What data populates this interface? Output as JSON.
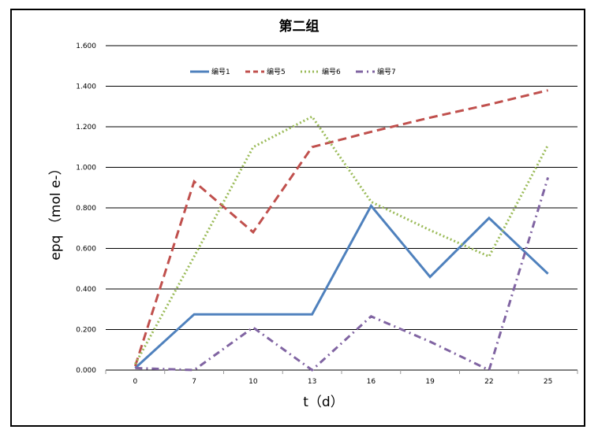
{
  "chart_data": {
    "type": "line",
    "title": "第二组",
    "xlabel": "t（d）",
    "ylabel": "epq （mol e-）",
    "categories": [
      "0",
      "7",
      "10",
      "13",
      "16",
      "19",
      "22",
      "25"
    ],
    "ylim": [
      0,
      1.6
    ],
    "ytick_labels": [
      "0.000",
      "0.200",
      "0.400",
      "0.600",
      "0.800",
      "1.000",
      "1.200",
      "1.400",
      "1.600"
    ],
    "grid": "horizontal",
    "legend_position": "top",
    "series": [
      {
        "name": "编号1",
        "color": "#4f81bd",
        "dash": "solid",
        "values": [
          0.01,
          0.275,
          0.275,
          0.275,
          0.81,
          0.46,
          0.75,
          0.475
        ]
      },
      {
        "name": "编号5",
        "color": "#c0504d",
        "dash": "dashed",
        "values": [
          0.02,
          0.93,
          0.68,
          1.1,
          1.175,
          1.245,
          1.31,
          1.38
        ]
      },
      {
        "name": "编号6",
        "color": "#9bbb59",
        "dash": "dotted",
        "values": [
          0.03,
          0.56,
          1.1,
          1.25,
          0.83,
          0.69,
          0.56,
          1.11
        ]
      },
      {
        "name": "编号7",
        "color": "#8064a2",
        "dash": "dashdot",
        "values": [
          0.01,
          0.0,
          0.21,
          0.0,
          0.265,
          0.14,
          0.0,
          0.95
        ]
      }
    ]
  }
}
